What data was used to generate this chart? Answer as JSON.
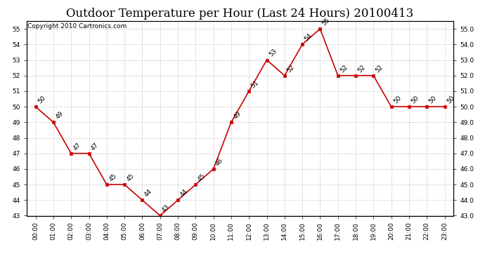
{
  "title": "Outdoor Temperature per Hour (Last 24 Hours) 20100413",
  "copyright": "Copyright 2010 Cartronics.com",
  "hours": [
    "00:00",
    "01:00",
    "02:00",
    "03:00",
    "04:00",
    "05:00",
    "06:00",
    "07:00",
    "08:00",
    "09:00",
    "10:00",
    "11:00",
    "12:00",
    "13:00",
    "14:00",
    "15:00",
    "16:00",
    "17:00",
    "18:00",
    "19:00",
    "20:00",
    "21:00",
    "22:00",
    "23:00"
  ],
  "temps": [
    50,
    49,
    47,
    47,
    45,
    45,
    44,
    43,
    44,
    45,
    46,
    49,
    51,
    53,
    52,
    54,
    55,
    52,
    52,
    52,
    50,
    50,
    50,
    50
  ],
  "ylim": [
    43.0,
    55.5
  ],
  "yticks": [
    43.0,
    44.0,
    45.0,
    46.0,
    47.0,
    48.0,
    49.0,
    50.0,
    51.0,
    52.0,
    53.0,
    54.0,
    55.0
  ],
  "line_color": "#cc0000",
  "marker_color": "#cc0000",
  "bg_color": "#ffffff",
  "grid_color": "#c8c8c8",
  "title_fontsize": 12,
  "copyright_fontsize": 6.5,
  "label_fontsize": 6.5,
  "tick_fontsize": 6.5
}
